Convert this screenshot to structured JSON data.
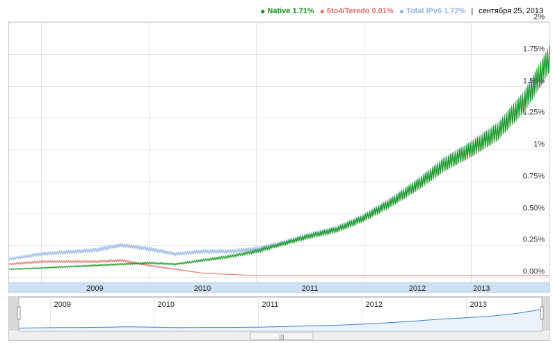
{
  "legend": {
    "native_label": "Native 1.71%",
    "teredo_label": "6to4/Teredo 0.01%",
    "total_label": "Total IPv6 1.72%",
    "date": "сентября 25, 2013",
    "separator": "|"
  },
  "colors": {
    "native": "#109618",
    "teredo": "#e47171",
    "total": "#94b6e2",
    "navigator_line": "#3a7cc7",
    "navigator_fill": "#eaf2fb",
    "axis_band": "#cfe0f3"
  },
  "chart_data": {
    "type": "line",
    "ylabel": "",
    "xlabel": "",
    "ylim": [
      0,
      2
    ],
    "ytick_labels": [
      "0.00%",
      "0.25%",
      "0.50%",
      "0.75%",
      "1%",
      "1.25%",
      "1.50%",
      "1.75%",
      "2%"
    ],
    "ytick_values": [
      0,
      0.25,
      0.5,
      0.75,
      1,
      1.25,
      1.5,
      1.75,
      2
    ],
    "xlim": [
      2008.7,
      2013.73
    ],
    "xtick_labels": [
      "2009",
      "2010",
      "2011",
      "2012",
      "2013"
    ],
    "xtick_positions": [
      2009.0,
      2010.0,
      2011.0,
      2012.0,
      2013.0
    ],
    "grid": true,
    "legend_position": "top-right",
    "series": [
      {
        "name": "Native",
        "x": [
          2008.7,
          2009.0,
          2009.5,
          2009.75,
          2010.0,
          2010.25,
          2010.5,
          2010.75,
          2011.0,
          2011.25,
          2011.5,
          2011.75,
          2012.0,
          2012.25,
          2012.5,
          2012.75,
          2013.0,
          2013.25,
          2013.5,
          2013.73
        ],
        "values": [
          0.06,
          0.07,
          0.09,
          0.1,
          0.11,
          0.1,
          0.13,
          0.16,
          0.2,
          0.26,
          0.32,
          0.37,
          0.46,
          0.58,
          0.72,
          0.88,
          1.0,
          1.14,
          1.38,
          1.71
        ]
      },
      {
        "name": "6to4/Teredo",
        "x": [
          2008.7,
          2009.0,
          2009.5,
          2009.75,
          2010.0,
          2010.25,
          2010.5,
          2010.75,
          2011.0,
          2011.25,
          2011.5,
          2011.75,
          2012.0,
          2012.25,
          2012.5,
          2012.75,
          2013.0,
          2013.25,
          2013.5,
          2013.73
        ],
        "values": [
          0.1,
          0.12,
          0.12,
          0.13,
          0.09,
          0.06,
          0.03,
          0.02,
          0.01,
          0.01,
          0.01,
          0.01,
          0.01,
          0.01,
          0.01,
          0.01,
          0.01,
          0.01,
          0.01,
          0.01
        ]
      },
      {
        "name": "Total IPv6",
        "x": [
          2008.7,
          2009.0,
          2009.5,
          2009.75,
          2010.0,
          2010.25,
          2010.5,
          2010.75,
          2011.0,
          2011.25,
          2011.5,
          2011.75,
          2012.0,
          2012.25,
          2012.5,
          2012.75,
          2013.0,
          2013.25,
          2013.5,
          2013.73
        ],
        "values": [
          0.14,
          0.18,
          0.21,
          0.25,
          0.22,
          0.18,
          0.2,
          0.2,
          0.22,
          0.27,
          0.33,
          0.38,
          0.47,
          0.59,
          0.73,
          0.89,
          1.01,
          1.15,
          1.39,
          1.72
        ]
      }
    ],
    "navigator": {
      "xtick_labels": [
        "2009",
        "2010",
        "2011",
        "2012",
        "2013"
      ]
    }
  }
}
